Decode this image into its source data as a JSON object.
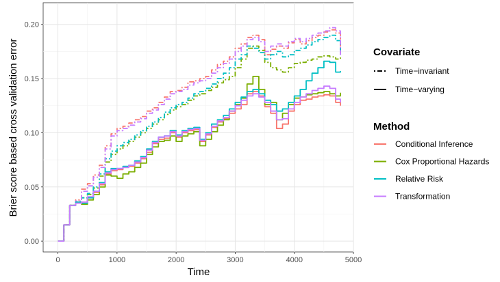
{
  "chart_data": {
    "type": "line",
    "xlabel": "Time",
    "ylabel": "Brier score based cross validation error",
    "xlim": [
      -250,
      5000
    ],
    "ylim": [
      -0.01,
      0.22
    ],
    "x_ticks": [
      0,
      1000,
      2000,
      3000,
      4000,
      5000
    ],
    "x_tick_labels": [
      "0",
      "1000",
      "2000",
      "3000",
      "4000",
      "5000"
    ],
    "y_ticks": [
      0.0,
      0.05,
      0.1,
      0.15,
      0.2
    ],
    "y_tick_labels": [
      "0.00",
      "0.05",
      "0.10",
      "0.15",
      "0.20"
    ],
    "grid": true,
    "legend_position": "right",
    "legends": {
      "covariate": {
        "title": "Covariate",
        "entries": [
          {
            "label": "Time−invariant",
            "linetype": "dotdash"
          },
          {
            "label": "Time−varying",
            "linetype": "solid"
          }
        ]
      },
      "method": {
        "title": "Method",
        "entries": [
          {
            "label": "Conditional Inference",
            "color": "#F8766D"
          },
          {
            "label": "Cox Proportional Hazards",
            "color": "#7CAE00"
          },
          {
            "label": "Relative Risk",
            "color": "#00BFC4"
          },
          {
            "label": "Transformation",
            "color": "#C77CFF"
          }
        ]
      }
    },
    "x": [
      0,
      100,
      200,
      300,
      400,
      500,
      600,
      700,
      800,
      900,
      1000,
      1100,
      1200,
      1300,
      1400,
      1500,
      1600,
      1700,
      1800,
      1900,
      2000,
      2100,
      2200,
      2300,
      2400,
      2500,
      2600,
      2700,
      2800,
      2900,
      3000,
      3100,
      3200,
      3300,
      3400,
      3500,
      3600,
      3700,
      3800,
      3900,
      4000,
      4100,
      4200,
      4300,
      4400,
      4500,
      4600,
      4700,
      4780
    ],
    "series": [
      {
        "method": "Conditional Inference",
        "covariate": "Time−invariant",
        "color": "#F8766D",
        "linetype": "dotdash",
        "values": [
          0.0,
          0.015,
          0.033,
          0.038,
          0.048,
          0.053,
          0.061,
          0.07,
          0.088,
          0.099,
          0.104,
          0.106,
          0.109,
          0.112,
          0.115,
          0.12,
          0.123,
          0.128,
          0.133,
          0.138,
          0.139,
          0.142,
          0.147,
          0.148,
          0.15,
          0.152,
          0.158,
          0.163,
          0.166,
          0.17,
          0.178,
          0.182,
          0.188,
          0.19,
          0.186,
          0.172,
          0.177,
          0.18,
          0.178,
          0.183,
          0.186,
          0.182,
          0.185,
          0.188,
          0.19,
          0.193,
          0.195,
          0.192,
          0.173
        ]
      },
      {
        "method": "Conditional Inference",
        "covariate": "Time−varying",
        "color": "#F8766D",
        "linetype": "solid",
        "values": [
          0.0,
          0.015,
          0.033,
          0.035,
          0.036,
          0.04,
          0.045,
          0.052,
          0.062,
          0.065,
          0.066,
          0.068,
          0.069,
          0.072,
          0.076,
          0.082,
          0.09,
          0.094,
          0.095,
          0.1,
          0.096,
          0.1,
          0.102,
          0.103,
          0.092,
          0.098,
          0.105,
          0.11,
          0.113,
          0.118,
          0.122,
          0.126,
          0.136,
          0.138,
          0.134,
          0.124,
          0.118,
          0.104,
          0.108,
          0.12,
          0.126,
          0.13,
          0.131,
          0.133,
          0.134,
          0.135,
          0.134,
          0.128,
          0.125
        ]
      },
      {
        "method": "Cox Proportional Hazards",
        "covariate": "Time−invariant",
        "color": "#7CAE00",
        "linetype": "dotdash",
        "values": [
          0.0,
          0.015,
          0.033,
          0.036,
          0.04,
          0.043,
          0.049,
          0.06,
          0.073,
          0.08,
          0.085,
          0.088,
          0.092,
          0.096,
          0.1,
          0.104,
          0.108,
          0.112,
          0.117,
          0.121,
          0.124,
          0.126,
          0.13,
          0.134,
          0.136,
          0.139,
          0.142,
          0.146,
          0.149,
          0.152,
          0.16,
          0.168,
          0.178,
          0.18,
          0.176,
          0.165,
          0.16,
          0.158,
          0.156,
          0.16,
          0.164,
          0.165,
          0.167,
          0.168,
          0.17,
          0.171,
          0.17,
          0.168,
          0.17
        ]
      },
      {
        "method": "Cox Proportional Hazards",
        "covariate": "Time−varying",
        "color": "#7CAE00",
        "linetype": "solid",
        "values": [
          0.0,
          0.015,
          0.033,
          0.036,
          0.034,
          0.038,
          0.043,
          0.05,
          0.061,
          0.06,
          0.058,
          0.062,
          0.064,
          0.068,
          0.072,
          0.08,
          0.087,
          0.092,
          0.093,
          0.097,
          0.092,
          0.097,
          0.099,
          0.101,
          0.088,
          0.094,
          0.101,
          0.107,
          0.112,
          0.12,
          0.126,
          0.132,
          0.145,
          0.152,
          0.14,
          0.126,
          0.128,
          0.112,
          0.118,
          0.126,
          0.132,
          0.133,
          0.135,
          0.136,
          0.137,
          0.138,
          0.136,
          0.134,
          0.137
        ]
      },
      {
        "method": "Relative Risk",
        "covariate": "Time−invariant",
        "color": "#00BFC4",
        "linetype": "dotdash",
        "values": [
          0.0,
          0.015,
          0.033,
          0.036,
          0.04,
          0.044,
          0.05,
          0.062,
          0.076,
          0.083,
          0.088,
          0.091,
          0.094,
          0.098,
          0.102,
          0.106,
          0.11,
          0.114,
          0.119,
          0.123,
          0.126,
          0.128,
          0.132,
          0.136,
          0.138,
          0.141,
          0.145,
          0.15,
          0.155,
          0.16,
          0.168,
          0.172,
          0.18,
          0.178,
          0.174,
          0.168,
          0.172,
          0.175,
          0.17,
          0.172,
          0.176,
          0.178,
          0.181,
          0.184,
          0.186,
          0.188,
          0.19,
          0.185,
          0.172
        ]
      },
      {
        "method": "Relative Risk",
        "covariate": "Time−varying",
        "color": "#00BFC4",
        "linetype": "solid",
        "values": [
          0.0,
          0.015,
          0.033,
          0.036,
          0.035,
          0.04,
          0.046,
          0.054,
          0.064,
          0.067,
          0.067,
          0.069,
          0.07,
          0.074,
          0.078,
          0.085,
          0.092,
          0.096,
          0.097,
          0.102,
          0.098,
          0.102,
          0.104,
          0.105,
          0.094,
          0.1,
          0.108,
          0.112,
          0.116,
          0.122,
          0.128,
          0.133,
          0.138,
          0.14,
          0.136,
          0.13,
          0.126,
          0.12,
          0.122,
          0.128,
          0.134,
          0.14,
          0.148,
          0.155,
          0.16,
          0.166,
          0.165,
          0.156,
          0.157
        ]
      },
      {
        "method": "Transformation",
        "covariate": "Time−invariant",
        "color": "#C77CFF",
        "linetype": "dotdash",
        "values": [
          0.0,
          0.015,
          0.033,
          0.037,
          0.046,
          0.051,
          0.059,
          0.068,
          0.085,
          0.097,
          0.102,
          0.104,
          0.107,
          0.11,
          0.113,
          0.118,
          0.121,
          0.126,
          0.131,
          0.136,
          0.138,
          0.14,
          0.144,
          0.146,
          0.148,
          0.15,
          0.155,
          0.16,
          0.164,
          0.168,
          0.175,
          0.18,
          0.186,
          0.188,
          0.184,
          0.175,
          0.18,
          0.182,
          0.18,
          0.184,
          0.187,
          0.184,
          0.187,
          0.19,
          0.192,
          0.194,
          0.197,
          0.194,
          0.171
        ]
      },
      {
        "method": "Transformation",
        "covariate": "Time−varying",
        "color": "#C77CFF",
        "linetype": "solid",
        "values": [
          0.0,
          0.015,
          0.033,
          0.035,
          0.036,
          0.041,
          0.046,
          0.053,
          0.063,
          0.066,
          0.067,
          0.068,
          0.07,
          0.073,
          0.077,
          0.084,
          0.091,
          0.096,
          0.097,
          0.101,
          0.097,
          0.101,
          0.103,
          0.104,
          0.093,
          0.099,
          0.106,
          0.111,
          0.114,
          0.12,
          0.125,
          0.13,
          0.134,
          0.136,
          0.133,
          0.128,
          0.12,
          0.112,
          0.113,
          0.122,
          0.128,
          0.133,
          0.136,
          0.139,
          0.141,
          0.143,
          0.141,
          0.131,
          0.128
        ]
      }
    ]
  }
}
